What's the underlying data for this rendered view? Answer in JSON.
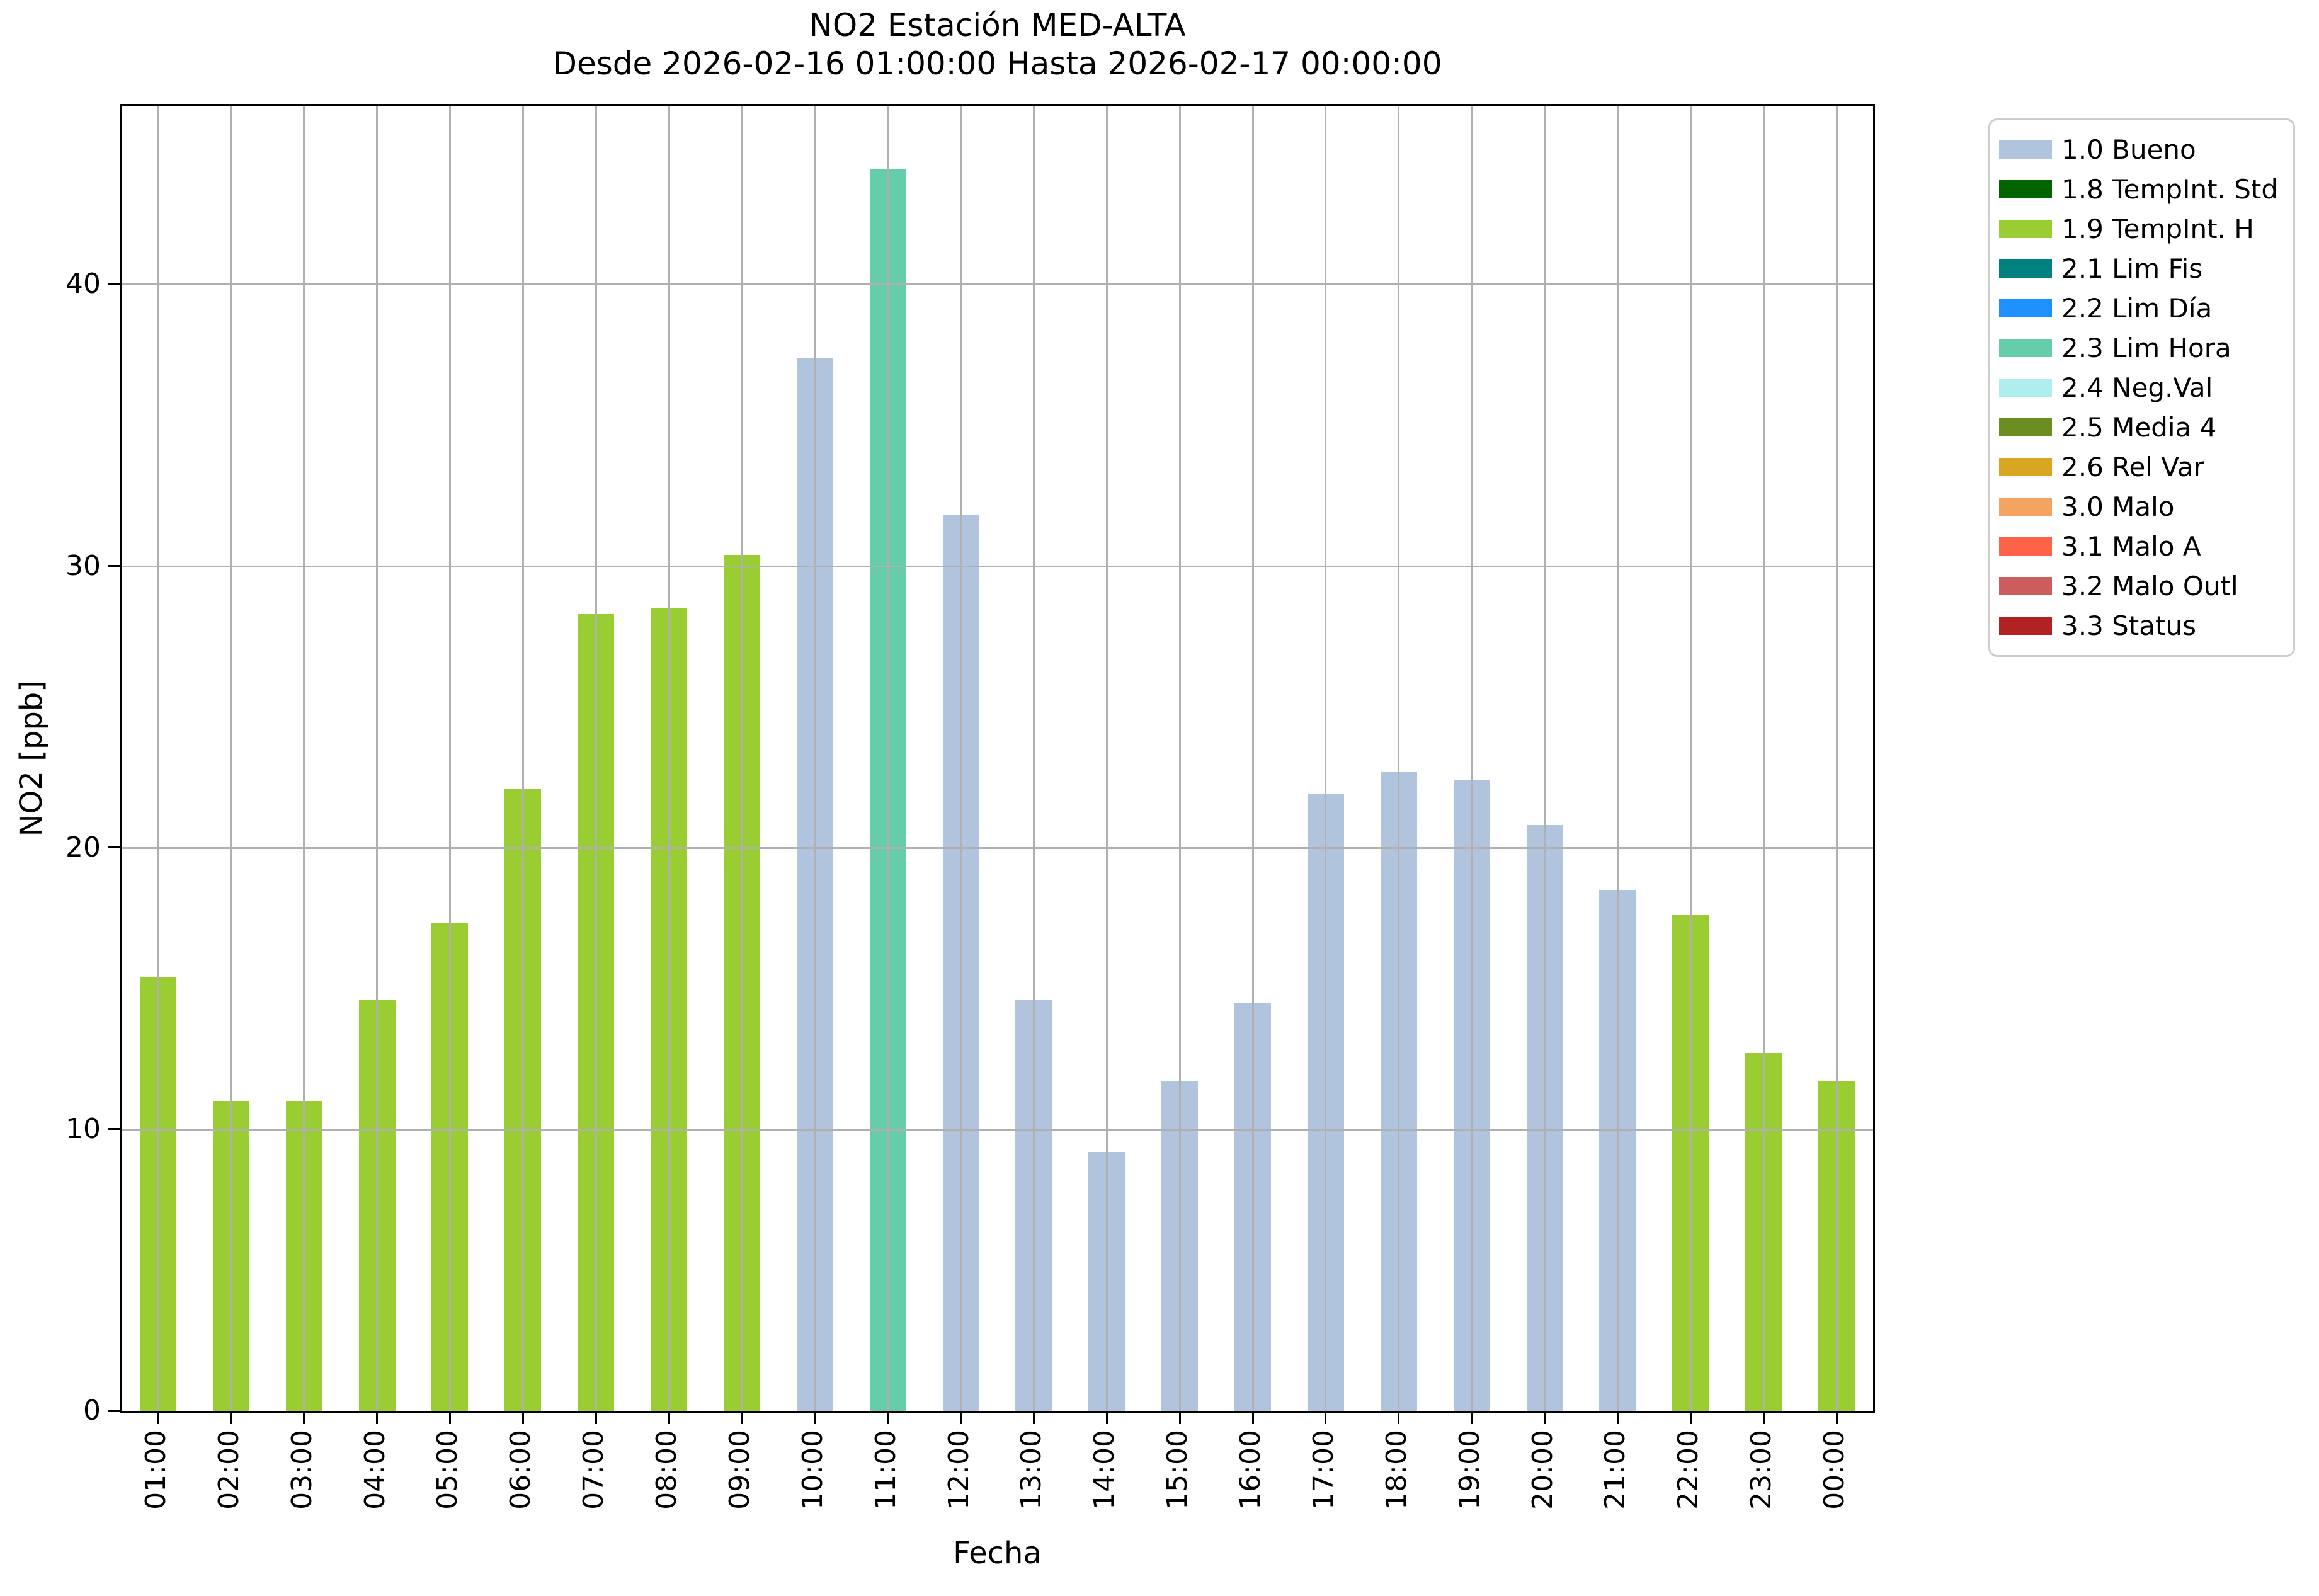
{
  "window": {
    "title_line1": "NO2 Estación MED-ALTA",
    "title_line2": "Desde 2026-02-16 01:00:00 Hasta 2026-02-17 00:00:00"
  },
  "chart_data": {
    "type": "bar",
    "title": "NO2 Estación MED-ALTA",
    "subtitle": "Desde 2026-02-16 01:00:00 Hasta 2026-02-17 00:00:00",
    "xlabel": "Fecha",
    "ylabel": "NO2 [ppb]",
    "ylim": [
      0,
      46.34
    ],
    "yticks": [
      0,
      10,
      20,
      30,
      40
    ],
    "grid": true,
    "legend_position": "outside-upper-right",
    "categories": [
      "01:00",
      "02:00",
      "03:00",
      "04:00",
      "05:00",
      "06:00",
      "07:00",
      "08:00",
      "09:00",
      "10:00",
      "11:00",
      "12:00",
      "13:00",
      "14:00",
      "15:00",
      "16:00",
      "17:00",
      "18:00",
      "19:00",
      "20:00",
      "21:00",
      "22:00",
      "23:00",
      "00:00"
    ],
    "values": [
      15.4,
      11.0,
      11.0,
      14.6,
      17.3,
      22.1,
      28.3,
      28.5,
      30.4,
      37.4,
      44.1,
      31.8,
      14.6,
      9.2,
      11.7,
      14.5,
      21.9,
      22.7,
      22.4,
      20.8,
      18.5,
      17.6,
      12.7,
      11.7
    ],
    "bar_flags": [
      "1.9 TempInt. H",
      "1.9 TempInt. H",
      "1.9 TempInt. H",
      "1.9 TempInt. H",
      "1.9 TempInt. H",
      "1.9 TempInt. H",
      "1.9 TempInt. H",
      "1.9 TempInt. H",
      "1.9 TempInt. H",
      "1.0 Bueno",
      "2.3 Lim Hora",
      "1.0 Bueno",
      "1.0 Bueno",
      "1.0 Bueno",
      "1.0 Bueno",
      "1.0 Bueno",
      "1.0 Bueno",
      "1.0 Bueno",
      "1.0 Bueno",
      "1.0 Bueno",
      "1.0 Bueno",
      "1.9 TempInt. H",
      "1.9 TempInt. H",
      "1.9 TempInt. H"
    ],
    "bar_colors": [
      "#9acd32",
      "#9acd32",
      "#9acd32",
      "#9acd32",
      "#9acd32",
      "#9acd32",
      "#9acd32",
      "#9acd32",
      "#9acd32",
      "#b0c4de",
      "#66cdaa",
      "#b0c4de",
      "#b0c4de",
      "#b0c4de",
      "#b0c4de",
      "#b0c4de",
      "#b0c4de",
      "#b0c4de",
      "#b0c4de",
      "#b0c4de",
      "#b0c4de",
      "#9acd32",
      "#9acd32",
      "#9acd32"
    ],
    "legend": [
      {
        "label": "1.0 Bueno",
        "color": "#b0c4de"
      },
      {
        "label": "1.8 TempInt. Std",
        "color": "#006400"
      },
      {
        "label": "1.9 TempInt. H",
        "color": "#9acd32"
      },
      {
        "label": "2.1 Lim Fis",
        "color": "#008080"
      },
      {
        "label": "2.2 Lim Día",
        "color": "#1e90ff"
      },
      {
        "label": "2.3 Lim Hora",
        "color": "#66cdaa"
      },
      {
        "label": "2.4 Neg.Val",
        "color": "#afeeee"
      },
      {
        "label": "2.5 Media 4",
        "color": "#6b8e23"
      },
      {
        "label": "2.6 Rel Var",
        "color": "#daa520"
      },
      {
        "label": "3.0 Malo",
        "color": "#f4a460"
      },
      {
        "label": "3.1 Malo A",
        "color": "#ff6347"
      },
      {
        "label": "3.2 Malo Outl",
        "color": "#cd5c5c"
      },
      {
        "label": "3.3 Status",
        "color": "#b22222"
      }
    ]
  },
  "colors": {
    "background": "#ffffff",
    "grid": "#b0b0b0",
    "axis": "#000000",
    "legend_border": "#cccccc"
  }
}
